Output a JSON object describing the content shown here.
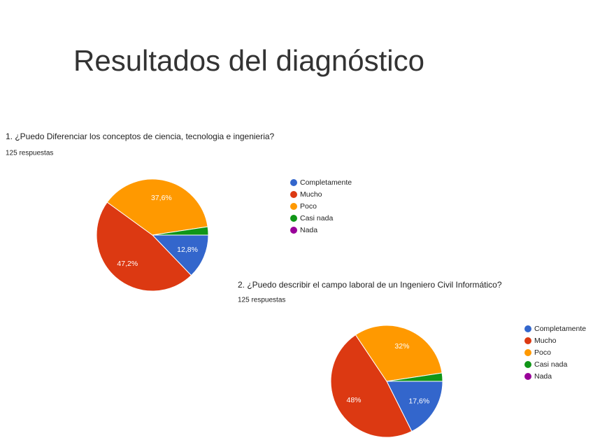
{
  "title": "Resultados del diagnóstico",
  "chart_data": [
    {
      "type": "pie",
      "title": "1. ¿Puedo Diferenciar los conceptos de ciencia, tecnologia e ingenieria?",
      "subtitle": "125 respuestas",
      "categories": [
        "Completamente",
        "Mucho",
        "Poco",
        "Casi nada",
        "Nada"
      ],
      "values": [
        12.8,
        47.2,
        37.6,
        2.4,
        0
      ],
      "value_labels": [
        "12,8%",
        "47,2%",
        "37,6%",
        null,
        null
      ],
      "colors": [
        "#3366cc",
        "#dc3912",
        "#ff9900",
        "#109618",
        "#990099"
      ]
    },
    {
      "type": "pie",
      "title": "2. ¿Puedo describir el campo laboral de un Ingeniero Civil Informático?",
      "subtitle": "125 respuestas",
      "categories": [
        "Completamente",
        "Mucho",
        "Poco",
        "Casi nada",
        "Nada"
      ],
      "values": [
        17.6,
        48,
        32,
        2.4,
        0
      ],
      "value_labels": [
        "17,6%",
        "48%",
        "32%",
        null,
        null
      ],
      "colors": [
        "#3366cc",
        "#dc3912",
        "#ff9900",
        "#109618",
        "#990099"
      ]
    }
  ]
}
